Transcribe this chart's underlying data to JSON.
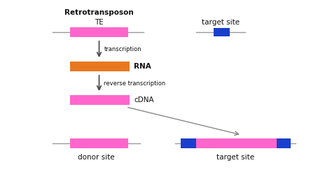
{
  "pink": "#FF66CC",
  "orange": "#E87820",
  "blue": "#1A3FCC",
  "gray_line": "#999999",
  "arrow_color": "#444444",
  "diag_arrow_color": "#888888",
  "text_color": "#111111",
  "title_text": "Retrotransposon",
  "te_label": "TE",
  "target_site_label_top": "target site",
  "rna_label": "RNA",
  "cdna_label": "cDNA",
  "transcription_label": "transcription",
  "rev_transcription_label": "reverse transcription",
  "donor_label": "donor site",
  "target_label_bottom": "target site",
  "fig_width": 4.74,
  "fig_height": 2.66,
  "dpi": 100
}
